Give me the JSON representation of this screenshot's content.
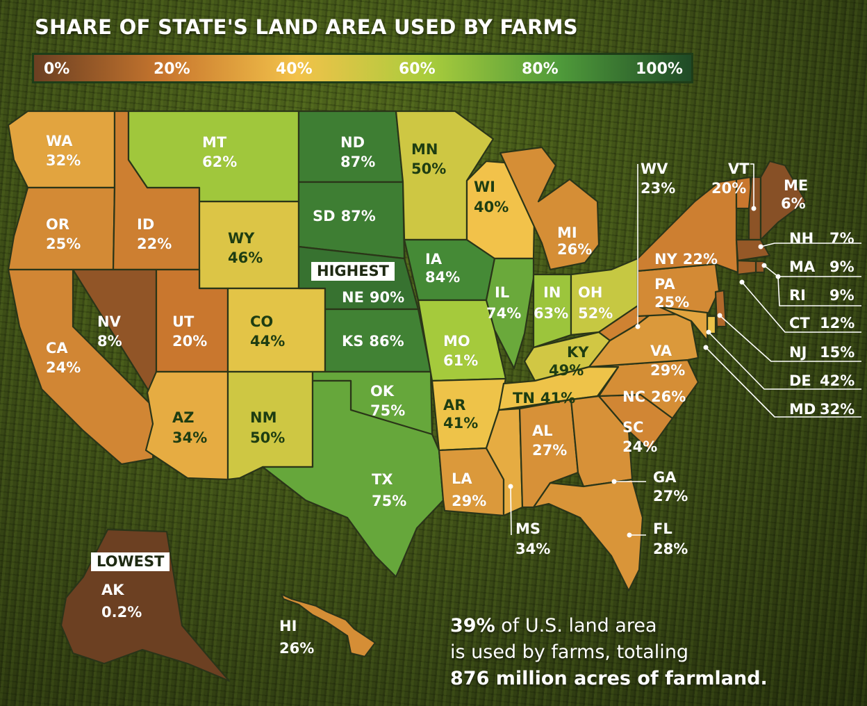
{
  "title": "SHARE OF STATE'S LAND AREA USED BY FARMS",
  "legend": {
    "ticks": [
      "0%",
      "20%",
      "40%",
      "60%",
      "80%",
      "100%"
    ],
    "stops": [
      "#6b3f22",
      "#c9772e",
      "#f2c24a",
      "#a9cc3c",
      "#4f9a3a",
      "#1f4a26"
    ]
  },
  "tags": {
    "highest": "HIGHEST",
    "lowest": "LOWEST"
  },
  "states": [
    {
      "abbr": "WA",
      "value": "32%",
      "share": 32
    },
    {
      "abbr": "OR",
      "value": "25%",
      "share": 25
    },
    {
      "abbr": "CA",
      "value": "24%",
      "share": 24
    },
    {
      "abbr": "ID",
      "value": "22%",
      "share": 22
    },
    {
      "abbr": "NV",
      "value": "8%",
      "share": 8
    },
    {
      "abbr": "MT",
      "value": "62%",
      "share": 62
    },
    {
      "abbr": "WY",
      "value": "46%",
      "share": 46
    },
    {
      "abbr": "UT",
      "value": "20%",
      "share": 20
    },
    {
      "abbr": "AZ",
      "value": "34%",
      "share": 34
    },
    {
      "abbr": "CO",
      "value": "44%",
      "share": 44
    },
    {
      "abbr": "NM",
      "value": "50%",
      "share": 50
    },
    {
      "abbr": "ND",
      "value": "87%",
      "share": 87
    },
    {
      "abbr": "SD",
      "value": "87%",
      "share": 87
    },
    {
      "abbr": "NE",
      "value": "90%",
      "share": 90
    },
    {
      "abbr": "KS",
      "value": "86%",
      "share": 86
    },
    {
      "abbr": "OK",
      "value": "75%",
      "share": 75
    },
    {
      "abbr": "TX",
      "value": "75%",
      "share": 75
    },
    {
      "abbr": "MN",
      "value": "50%",
      "share": 50
    },
    {
      "abbr": "IA",
      "value": "84%",
      "share": 84
    },
    {
      "abbr": "MO",
      "value": "61%",
      "share": 61
    },
    {
      "abbr": "AR",
      "value": "41%",
      "share": 41
    },
    {
      "abbr": "LA",
      "value": "29%",
      "share": 29
    },
    {
      "abbr": "WI",
      "value": "40%",
      "share": 40
    },
    {
      "abbr": "IL",
      "value": "74%",
      "share": 74
    },
    {
      "abbr": "MI",
      "value": "26%",
      "share": 26
    },
    {
      "abbr": "IN",
      "value": "63%",
      "share": 63
    },
    {
      "abbr": "OH",
      "value": "52%",
      "share": 52
    },
    {
      "abbr": "KY",
      "value": "49%",
      "share": 49
    },
    {
      "abbr": "TN",
      "value": "41%",
      "share": 41
    },
    {
      "abbr": "MS",
      "value": "34%",
      "share": 34
    },
    {
      "abbr": "AL",
      "value": "27%",
      "share": 27
    },
    {
      "abbr": "GA",
      "value": "27%",
      "share": 27
    },
    {
      "abbr": "FL",
      "value": "28%",
      "share": 28
    },
    {
      "abbr": "SC",
      "value": "24%",
      "share": 24
    },
    {
      "abbr": "NC",
      "value": "26%",
      "share": 26
    },
    {
      "abbr": "VA",
      "value": "29%",
      "share": 29
    },
    {
      "abbr": "WV",
      "value": "23%",
      "share": 23
    },
    {
      "abbr": "PA",
      "value": "25%",
      "share": 25
    },
    {
      "abbr": "NY",
      "value": "22%",
      "share": 22
    },
    {
      "abbr": "VT",
      "value": "20%",
      "share": 20
    },
    {
      "abbr": "NH",
      "value": "7%",
      "share": 7
    },
    {
      "abbr": "ME",
      "value": "6%",
      "share": 6
    },
    {
      "abbr": "MA",
      "value": "9%",
      "share": 9
    },
    {
      "abbr": "RI",
      "value": "9%",
      "share": 9
    },
    {
      "abbr": "CT",
      "value": "12%",
      "share": 12
    },
    {
      "abbr": "NJ",
      "value": "15%",
      "share": 15
    },
    {
      "abbr": "DE",
      "value": "42%",
      "share": 42
    },
    {
      "abbr": "MD",
      "value": "32%",
      "share": 32
    },
    {
      "abbr": "AK",
      "value": "0.2%",
      "share": 0.2
    },
    {
      "abbr": "HI",
      "value": "26%",
      "share": 26
    }
  ],
  "summary": {
    "pct": "39%",
    "line1_rest": " of U.S. land area",
    "line2": "is used by farms, totaling",
    "line3": "876 million acres of farmland."
  }
}
